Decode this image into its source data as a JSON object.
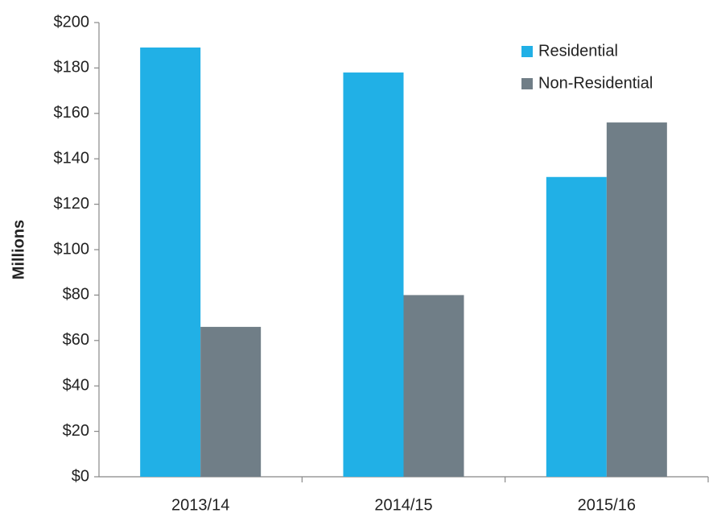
{
  "chart_data": {
    "type": "bar",
    "y_label": "Millions",
    "categories": [
      "2013/14",
      "2014/15",
      "2015/16"
    ],
    "series": [
      {
        "name": "Residential",
        "color": "#21b0e6",
        "values": [
          189,
          178,
          132
        ]
      },
      {
        "name": "Non-Residential",
        "color": "#707e87",
        "values": [
          66,
          80,
          156
        ]
      }
    ],
    "ylim": [
      0,
      200
    ],
    "yticks": [
      {
        "value": 0,
        "label": "$0"
      },
      {
        "value": 20,
        "label": "$20"
      },
      {
        "value": 40,
        "label": "$40"
      },
      {
        "value": 60,
        "label": "$60"
      },
      {
        "value": 80,
        "label": "$80"
      },
      {
        "value": 100,
        "label": "$100"
      },
      {
        "value": 120,
        "label": "$120"
      },
      {
        "value": 140,
        "label": "$140"
      },
      {
        "value": 160,
        "label": "$160"
      },
      {
        "value": 180,
        "label": "$180"
      },
      {
        "value": 200,
        "label": "$200"
      }
    ],
    "grid": false,
    "legend": "top-right"
  }
}
